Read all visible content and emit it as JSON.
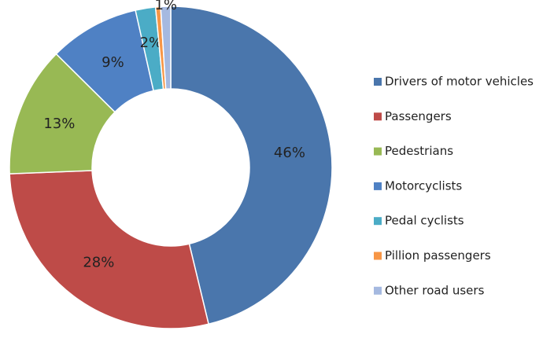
{
  "chart_data": {
    "type": "donut",
    "categories": [
      "Drivers of motor vehicles",
      "Passengers",
      "Pedestrians",
      "Motorcyclists",
      "Pedal cyclists",
      "Pillion passengers",
      "Other road users"
    ],
    "values": [
      46,
      28,
      13,
      9,
      2,
      0.5,
      1
    ],
    "value_labels": [
      "46%",
      "28%",
      "13%",
      "9%",
      "2%",
      null,
      "1%"
    ],
    "colors": [
      "#4a76ac",
      "#be4b48",
      "#98b954",
      "#4f81c4",
      "#4bacc6",
      "#f79646",
      "#a5b9e0"
    ],
    "legend": "right"
  }
}
